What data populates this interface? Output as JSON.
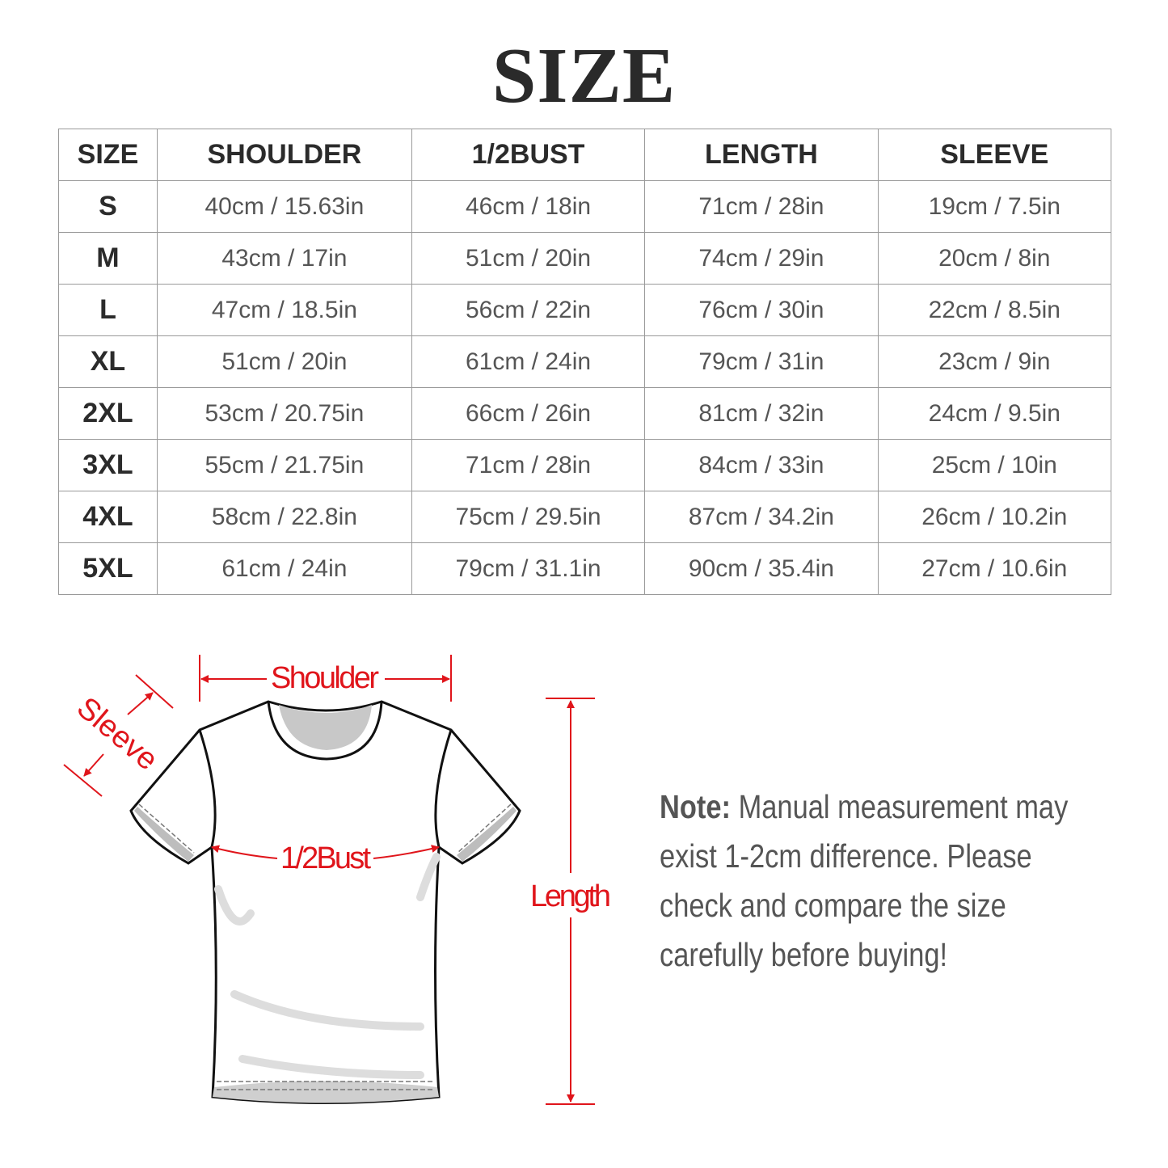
{
  "title": "SIZE",
  "table": {
    "headers": [
      "SIZE",
      "SHOULDER",
      "1/2BUST",
      "LENGTH",
      "SLEEVE"
    ],
    "rows": [
      [
        "S",
        "40cm / 15.63in",
        "46cm / 18in",
        "71cm / 28in",
        "19cm / 7.5in"
      ],
      [
        "M",
        "43cm / 17in",
        "51cm / 20in",
        "74cm / 29in",
        "20cm / 8in"
      ],
      [
        "L",
        "47cm / 18.5in",
        "56cm / 22in",
        "76cm / 30in",
        "22cm / 8.5in"
      ],
      [
        "XL",
        "51cm / 20in",
        "61cm / 24in",
        "79cm / 31in",
        "23cm / 9in"
      ],
      [
        "2XL",
        "53cm / 20.75in",
        "66cm / 26in",
        "81cm / 32in",
        "24cm / 9.5in"
      ],
      [
        "3XL",
        "55cm / 21.75in",
        "71cm / 28in",
        "84cm / 33in",
        "25cm / 10in"
      ],
      [
        "4XL",
        "58cm / 22.8in",
        "75cm / 29.5in",
        "87cm / 34.2in",
        "26cm / 10.2in"
      ],
      [
        "5XL",
        "61cm / 24in",
        "79cm / 31.1in",
        "90cm / 35.4in",
        "27cm / 10.6in"
      ]
    ]
  },
  "diagram": {
    "shoulder_label": "Shoulder",
    "sleeve_label": "Sleeve",
    "bust_label": "1/2Bust",
    "length_label": "Length",
    "accent_color": "#e0151b"
  },
  "note": {
    "label": "Note:",
    "text": "Manual measurement may exist 1-2cm difference. Please check and compare the size carefully before buying!"
  }
}
